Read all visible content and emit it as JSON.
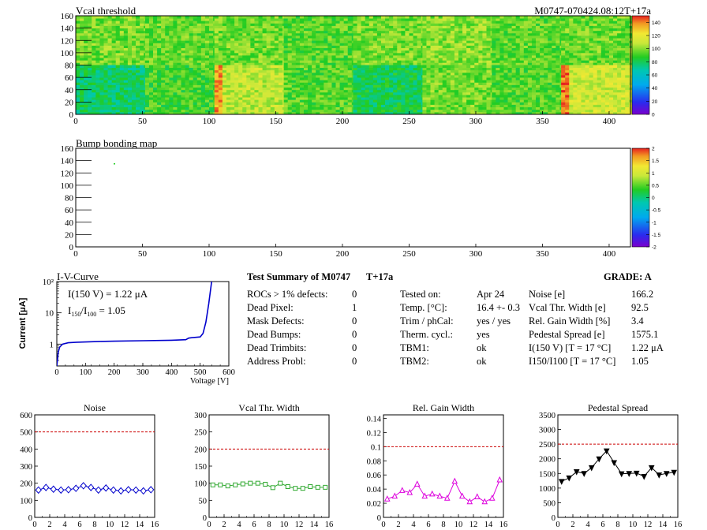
{
  "header": {
    "module_id": "M0747-070424.08:12T+17a"
  },
  "colors": {
    "limit_line": "#cc0000",
    "noise_series": "#0000cc",
    "vcal_series": "#33aa33",
    "gain_series": "#dd00dd",
    "pedestal_series": "#000000",
    "iv_curve": "#0000cc"
  },
  "chart_data": [
    {
      "id": "vcal_threshold_map",
      "type": "heatmap",
      "title": "Vcal threshold",
      "x_ticks": [
        "0",
        "50",
        "100",
        "150",
        "200",
        "250",
        "300",
        "350",
        "400"
      ],
      "y_ticks": [
        "0",
        "20",
        "40",
        "60",
        "80",
        "100",
        "120",
        "140",
        "160"
      ],
      "xlim": [
        0,
        416
      ],
      "ylim": [
        0,
        160
      ],
      "colorbar_ticks": [
        "0",
        "20",
        "40",
        "60",
        "80",
        "100",
        "120",
        "140"
      ],
      "colorbar_range": [
        0,
        150
      ],
      "roc_means": {
        "top_row": [
          97,
          95,
          97,
          93,
          97,
          100,
          94,
          96
        ],
        "bottom_row": [
          78,
          90,
          108,
          93,
          80,
          97,
          92,
          112
        ]
      }
    },
    {
      "id": "bump_bonding_map",
      "type": "heatmap",
      "title": "Bump bonding map",
      "x_ticks": [
        "0",
        "50",
        "100",
        "150",
        "200",
        "250",
        "300",
        "350",
        "400"
      ],
      "y_ticks": [
        "0",
        "20",
        "40",
        "60",
        "80",
        "100",
        "120",
        "140",
        "160"
      ],
      "xlim": [
        0,
        416
      ],
      "ylim": [
        0,
        160
      ],
      "colorbar_ticks": [
        "-2",
        "-1.5",
        "-1",
        "-0.5",
        "0",
        "0.5",
        "1",
        "1.5",
        "2"
      ],
      "colorbar_range": [
        -2,
        2
      ]
    },
    {
      "id": "iv_curve",
      "type": "line",
      "title": "I-V-Curve",
      "xlabel": "Voltage [V]",
      "ylabel": "Current [μA]",
      "x_ticks": [
        "0",
        "100",
        "200",
        "300",
        "400",
        "500",
        "600"
      ],
      "y_ticks": [
        "1",
        "10",
        "10²"
      ],
      "xlim": [
        0,
        600
      ],
      "ylim": [
        0.2,
        100
      ],
      "y_scale": "log",
      "annotations": [
        "I(150 V) = 1.22 μA",
        "I150/I100 = 1.05"
      ],
      "x": [
        0,
        5,
        10,
        20,
        40,
        70,
        100,
        150,
        200,
        300,
        400,
        450,
        460,
        470,
        500,
        510,
        520,
        530,
        540
      ],
      "y": [
        0.2,
        0.55,
        0.8,
        1.0,
        1.1,
        1.15,
        1.17,
        1.22,
        1.24,
        1.28,
        1.33,
        1.38,
        1.55,
        1.6,
        1.7,
        2.2,
        5.0,
        20,
        100
      ]
    },
    {
      "id": "noise",
      "type": "line",
      "title": "Noise",
      "x_ticks": [
        "0",
        "2",
        "4",
        "6",
        "8",
        "10",
        "12",
        "14",
        "16"
      ],
      "y_ticks": [
        "0",
        "100",
        "200",
        "300",
        "400",
        "500",
        "600"
      ],
      "xlim": [
        0,
        16
      ],
      "ylim": [
        0,
        600
      ],
      "limit": 500,
      "x": [
        0.5,
        1.5,
        2.5,
        3.5,
        4.5,
        5.5,
        6.5,
        7.5,
        8.5,
        9.5,
        10.5,
        11.5,
        12.5,
        13.5,
        14.5,
        15.5
      ],
      "values": [
        160,
        175,
        165,
        160,
        162,
        170,
        185,
        175,
        160,
        172,
        160,
        155,
        162,
        160,
        155,
        162
      ]
    },
    {
      "id": "vcal_thr_width",
      "type": "line",
      "title": "Vcal Thr. Width",
      "x_ticks": [
        "0",
        "2",
        "4",
        "6",
        "8",
        "10",
        "12",
        "14",
        "16"
      ],
      "y_ticks": [
        "0",
        "50",
        "100",
        "150",
        "200",
        "250",
        "300"
      ],
      "xlim": [
        0,
        16
      ],
      "ylim": [
        0,
        300
      ],
      "limit": 200,
      "x": [
        0.5,
        1.5,
        2.5,
        3.5,
        4.5,
        5.5,
        6.5,
        7.5,
        8.5,
        9.5,
        10.5,
        11.5,
        12.5,
        13.5,
        14.5,
        15.5
      ],
      "values": [
        95,
        95,
        92,
        95,
        98,
        100,
        100,
        97,
        87,
        100,
        90,
        85,
        85,
        90,
        88,
        88
      ]
    },
    {
      "id": "rel_gain_width",
      "type": "line",
      "title": "Rel. Gain Width",
      "x_ticks": [
        "0",
        "2",
        "4",
        "6",
        "8",
        "10",
        "12",
        "14",
        "16"
      ],
      "y_ticks": [
        "0",
        "0.02",
        "0.04",
        "0.06",
        "0.08",
        "0.1",
        "0.12",
        "0.14"
      ],
      "xlim": [
        0,
        16
      ],
      "ylim": [
        0,
        0.145
      ],
      "limit": 0.1,
      "x": [
        0.5,
        1.5,
        2.5,
        3.5,
        4.5,
        5.5,
        6.5,
        7.5,
        8.5,
        9.5,
        10.5,
        11.5,
        12.5,
        13.5,
        14.5,
        15.5
      ],
      "values": [
        0.026,
        0.03,
        0.038,
        0.035,
        0.047,
        0.03,
        0.033,
        0.03,
        0.027,
        0.051,
        0.03,
        0.022,
        0.029,
        0.022,
        0.027,
        0.053
      ]
    },
    {
      "id": "pedestal_spread",
      "type": "line",
      "title": "Pedestal Spread",
      "x_ticks": [
        "0",
        "2",
        "4",
        "6",
        "8",
        "10",
        "12",
        "14",
        "16"
      ],
      "y_ticks": [
        "0",
        "500",
        "1000",
        "1500",
        "2000",
        "2500",
        "3000",
        "3500"
      ],
      "xlim": [
        0,
        16
      ],
      "ylim": [
        0,
        3500
      ],
      "limit": 2500,
      "x": [
        0.5,
        1.5,
        2.5,
        3.5,
        4.5,
        5.5,
        6.5,
        7.5,
        8.5,
        9.5,
        10.5,
        11.5,
        12.5,
        13.5,
        14.5,
        15.5
      ],
      "values": [
        1230,
        1350,
        1560,
        1500,
        1700,
        2000,
        2270,
        1870,
        1490,
        1500,
        1510,
        1400,
        1700,
        1450,
        1500,
        1540
      ]
    }
  ],
  "summary": {
    "title": "Test Summary of M0747",
    "temp_label": "T+17a",
    "grade_label": "GRADE:  A",
    "defects": [
      {
        "label": "ROCs > 1% defects:",
        "value": "0"
      },
      {
        "label": "Dead Pixel:",
        "value": "1"
      },
      {
        "label": "Mask Defects:",
        "value": "0"
      },
      {
        "label": "Dead Bumps:",
        "value": "0"
      },
      {
        "label": "Dead Trimbits:",
        "value": "0"
      },
      {
        "label": "Address Probl:",
        "value": "0"
      }
    ],
    "conditions": [
      {
        "label": "Tested on:",
        "value": "Apr 24"
      },
      {
        "label": "Temp. [°C]:",
        "value": "16.4 +- 0.3"
      },
      {
        "label": "Trim / phCal:",
        "value": "yes / yes"
      },
      {
        "label": "Therm. cycl.:",
        "value": "yes"
      },
      {
        "label": "TBM1:",
        "value": "ok"
      },
      {
        "label": "TBM2:",
        "value": "ok"
      }
    ],
    "results": [
      {
        "label": "Noise [e]",
        "value": "166.2"
      },
      {
        "label": "Vcal Thr. Width [e]",
        "value": "92.5"
      },
      {
        "label": "Rel. Gain Width [%]",
        "value": "3.4"
      },
      {
        "label": "Pedestal Spread [e]",
        "value": "1575.1"
      },
      {
        "label": "I(150 V) [T = 17 °C]",
        "value": "1.22 μA"
      },
      {
        "label": "I150/I100 [T = 17 °C]",
        "value": "1.05"
      }
    ]
  }
}
